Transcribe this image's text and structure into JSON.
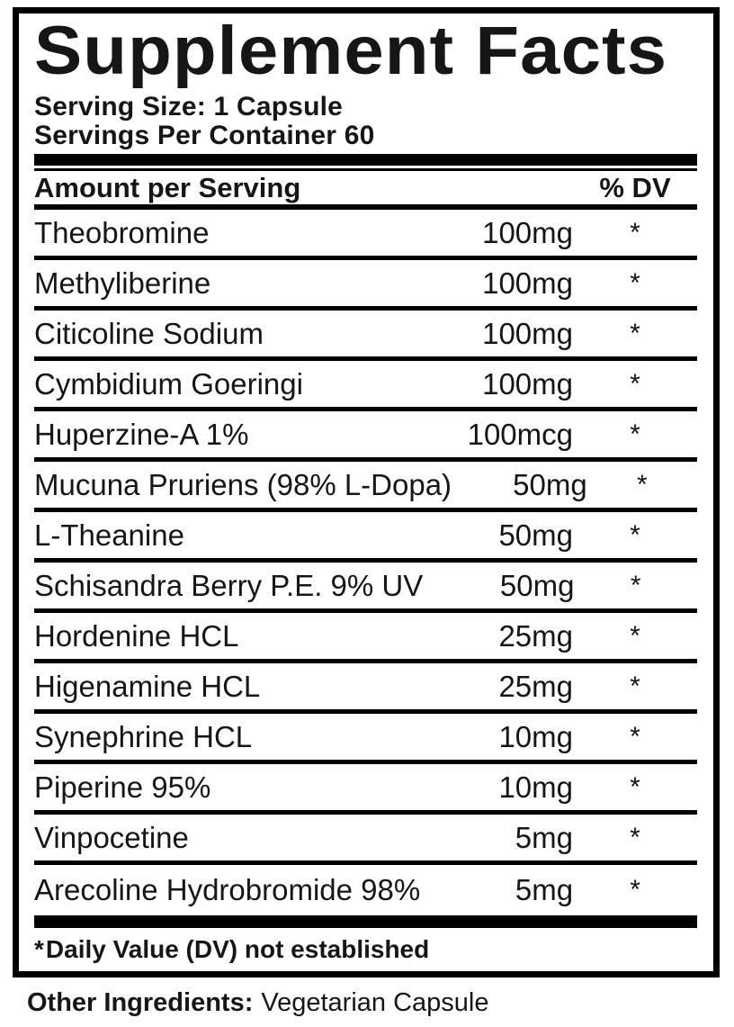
{
  "label": {
    "title": "Supplement Facts",
    "serving_size": "Serving Size: 1 Capsule",
    "servings_per_container": "Servings Per Container 60",
    "header": {
      "amount": "Amount per Serving",
      "dv": "% DV"
    },
    "rows": [
      {
        "name": "Theobromine",
        "amount": "100mg",
        "dv": "*"
      },
      {
        "name": "Methyliberine",
        "amount": "100mg",
        "dv": "*"
      },
      {
        "name": "Citicoline Sodium",
        "amount": "100mg",
        "dv": "*"
      },
      {
        "name": "Cymbidium Goeringi",
        "amount": "100mg",
        "dv": "*"
      },
      {
        "name": "Huperzine-A 1%",
        "amount": "100mcg",
        "dv": "*"
      },
      {
        "name": "Mucuna Pruriens (98% L-Dopa)",
        "amount": "50mg",
        "dv": "*"
      },
      {
        "name": "L-Theanine",
        "amount": "50mg",
        "dv": "*"
      },
      {
        "name": "Schisandra Berry P.E. 9% UV",
        "amount": "50mg",
        "dv": "*"
      },
      {
        "name": "Hordenine HCL",
        "amount": "25mg",
        "dv": "*"
      },
      {
        "name": "Higenamine HCL",
        "amount": "25mg",
        "dv": "*"
      },
      {
        "name": "Synephrine HCL",
        "amount": "10mg",
        "dv": "*"
      },
      {
        "name": "Piperine 95%",
        "amount": "10mg",
        "dv": "*"
      },
      {
        "name": "Vinpocetine",
        "amount": "5mg",
        "dv": "*"
      },
      {
        "name": "Arecoline Hydrobromide 98%",
        "amount": "5mg",
        "dv": "*"
      }
    ],
    "footnote": {
      "asterisk": "*",
      "text": "Daily Value (DV) not established"
    },
    "other_ingredients": {
      "label": "Other Ingredients:",
      "value": "Vegetarian Capsule"
    }
  },
  "colors": {
    "background": "#ffffff",
    "text": "#161616",
    "bar": "#000000"
  }
}
